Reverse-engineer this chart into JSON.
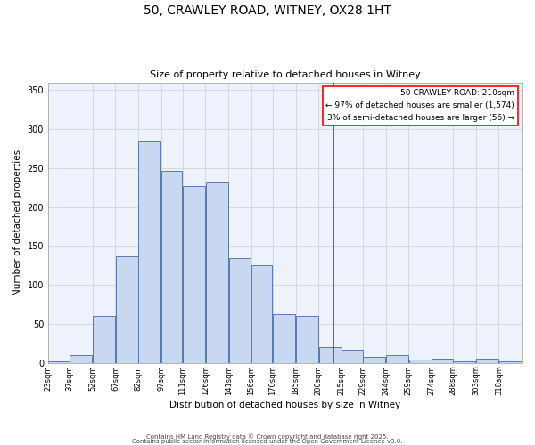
{
  "title1": "50, CRAWLEY ROAD, WITNEY, OX28 1HT",
  "title2": "Size of property relative to detached houses in Witney",
  "xlabel": "Distribution of detached houses by size in Witney",
  "ylabel": "Number of detached properties",
  "bins": [
    23,
    37,
    52,
    67,
    82,
    97,
    111,
    126,
    141,
    156,
    170,
    185,
    200,
    215,
    229,
    244,
    259,
    274,
    288,
    303,
    318,
    333
  ],
  "bin_labels": [
    "23sqm",
    "37sqm",
    "52sqm",
    "67sqm",
    "82sqm",
    "97sqm",
    "111sqm",
    "126sqm",
    "141sqm",
    "156sqm",
    "170sqm",
    "185sqm",
    "200sqm",
    "215sqm",
    "229sqm",
    "244sqm",
    "259sqm",
    "274sqm",
    "288sqm",
    "303sqm",
    "318sqm"
  ],
  "values": [
    2,
    10,
    60,
    137,
    285,
    247,
    227,
    232,
    135,
    125,
    63,
    60,
    20,
    17,
    8,
    10,
    4,
    5,
    2,
    6,
    2
  ],
  "bar_color": "#c8d8f0",
  "bar_edge_color": "#5878b0",
  "red_line_x": 210,
  "annotation_title": "50 CRAWLEY ROAD: 210sqm",
  "annotation_line1": "← 97% of detached houses are smaller (1,574)",
  "annotation_line2": "3% of semi-detached houses are larger (56) →",
  "ylim": [
    0,
    360
  ],
  "yticks": [
    0,
    50,
    100,
    150,
    200,
    250,
    300,
    350
  ],
  "bg_color": "#eef2fc",
  "grid_color": "#cccccc",
  "footer1": "Contains HM Land Registry data © Crown copyright and database right 2025.",
  "footer2": "Contains public sector information licensed under the Open Government Licence v3.0."
}
